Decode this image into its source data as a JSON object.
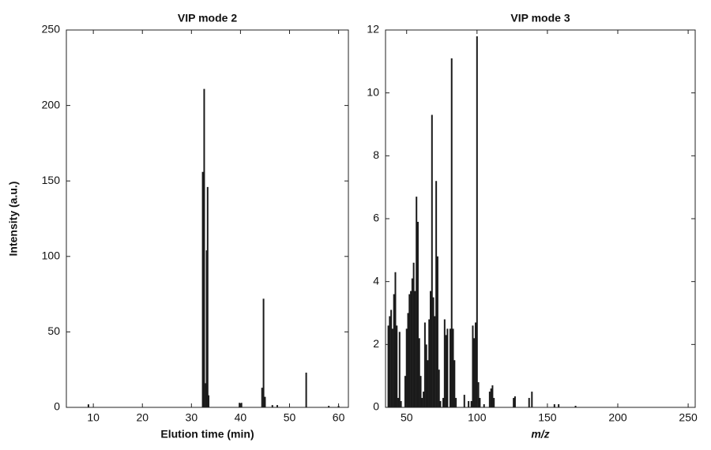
{
  "chart_data": [
    {
      "type": "stem",
      "title": "VIP mode 2",
      "x_label": "Elution time (min)",
      "y_label": "Intensity (a.u.)",
      "color": "#1a1a1a",
      "x": [
        9,
        32.3,
        32.6,
        32.9,
        33.1,
        33.3,
        33.5,
        39.8,
        40.2,
        44.4,
        44.7,
        45,
        46.5,
        47.5,
        53.4,
        58,
        60
      ],
      "values": [
        2,
        156,
        211,
        16,
        104,
        146,
        8,
        3,
        3,
        13,
        72,
        7,
        1.5,
        1.5,
        23,
        1,
        1
      ],
      "xlim": [
        4.5,
        62
      ],
      "ylim": [
        0,
        250
      ],
      "xticks": [
        10,
        20,
        30,
        40,
        50,
        60
      ],
      "yticks": [
        0,
        50,
        100,
        150,
        200,
        250
      ]
    },
    {
      "type": "stem",
      "title": "VIP mode 3",
      "x_label": "m/z",
      "color": "#1a1a1a",
      "x": [
        37,
        38,
        39,
        40,
        41,
        42,
        43,
        44,
        45,
        46,
        49,
        50,
        51,
        52,
        53,
        54,
        55,
        56,
        57,
        58,
        59,
        60,
        61,
        62,
        63,
        64,
        65,
        66,
        67,
        68,
        69,
        70,
        71,
        72,
        73,
        74,
        76,
        77,
        78,
        79,
        81,
        82,
        83,
        84,
        85,
        91,
        94,
        96,
        97,
        98,
        99,
        100,
        101,
        102,
        105,
        109,
        110,
        111,
        112,
        126,
        127,
        137,
        139,
        155,
        158,
        170
      ],
      "values": [
        2.6,
        2.9,
        3.1,
        2.5,
        3.6,
        4.3,
        2.6,
        0.3,
        2.4,
        0.2,
        1.0,
        2.5,
        3.0,
        3.6,
        3.7,
        4.1,
        4.6,
        3.7,
        6.7,
        5.9,
        2.2,
        1.0,
        0.3,
        0.5,
        2.7,
        2.0,
        1.5,
        2.8,
        3.7,
        9.3,
        3.5,
        2.9,
        7.2,
        4.8,
        1.2,
        0.2,
        0.3,
        2.8,
        2.3,
        2.5,
        2.5,
        11.1,
        2.5,
        1.5,
        0.3,
        0.4,
        0.2,
        0.2,
        2.6,
        2.2,
        2.7,
        11.8,
        0.8,
        0.3,
        0.1,
        0.5,
        0.6,
        0.7,
        0.3,
        0.3,
        0.35,
        0.3,
        0.5,
        0.1,
        0.1,
        0.05
      ],
      "xlim": [
        35,
        255
      ],
      "ylim": [
        0,
        12
      ],
      "xticks": [
        50,
        100,
        150,
        200,
        250
      ],
      "yticks": [
        0,
        2,
        4,
        6,
        8,
        10,
        12
      ]
    }
  ]
}
